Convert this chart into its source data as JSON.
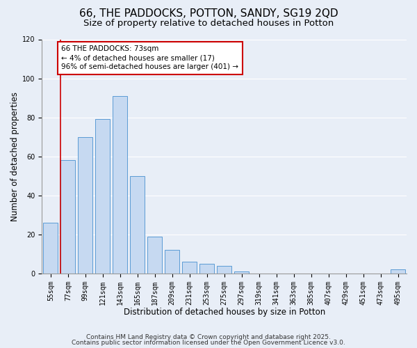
{
  "title": "66, THE PADDOCKS, POTTON, SANDY, SG19 2QD",
  "subtitle": "Size of property relative to detached houses in Potton",
  "xlabel": "Distribution of detached houses by size in Potton",
  "ylabel": "Number of detached properties",
  "bar_labels": [
    "55sqm",
    "77sqm",
    "99sqm",
    "121sqm",
    "143sqm",
    "165sqm",
    "187sqm",
    "209sqm",
    "231sqm",
    "253sqm",
    "275sqm",
    "297sqm",
    "319sqm",
    "341sqm",
    "363sqm",
    "385sqm",
    "407sqm",
    "429sqm",
    "451sqm",
    "473sqm",
    "495sqm"
  ],
  "bar_heights": [
    26,
    58,
    70,
    79,
    91,
    50,
    19,
    12,
    6,
    5,
    4,
    1,
    0,
    0,
    0,
    0,
    0,
    0,
    0,
    0,
    2
  ],
  "bar_color": "#c6d9f1",
  "bar_edge_color": "#5b9bd5",
  "vline_color": "#cc0000",
  "annotation_title": "66 THE PADDOCKS: 73sqm",
  "annotation_line1": "← 4% of detached houses are smaller (17)",
  "annotation_line2": "96% of semi-detached houses are larger (401) →",
  "annotation_box_edge": "#cc0000",
  "ylim": [
    0,
    120
  ],
  "yticks": [
    0,
    20,
    40,
    60,
    80,
    100,
    120
  ],
  "footer1": "Contains HM Land Registry data © Crown copyright and database right 2025.",
  "footer2": "Contains public sector information licensed under the Open Government Licence v3.0.",
  "bg_color": "#e8eef7",
  "plot_bg_color": "#e8eef7",
  "grid_color": "#ffffff",
  "title_fontsize": 11,
  "subtitle_fontsize": 9.5,
  "axis_label_fontsize": 8.5,
  "tick_fontsize": 7,
  "annotation_fontsize": 7.5,
  "footer_fontsize": 6.5
}
